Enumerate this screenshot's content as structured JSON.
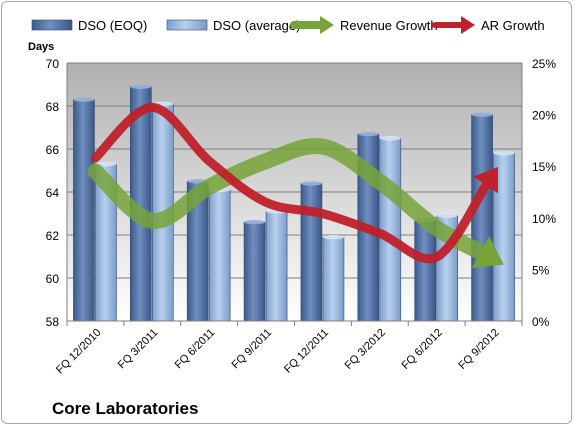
{
  "chart_data": {
    "type": "bar",
    "title": "Core Laboratories",
    "categories": [
      "FQ 12/2010",
      "FQ 3/2011",
      "FQ 6/2011",
      "FQ 9/2011",
      "FQ 12/2011",
      "FQ 3/2012",
      "FQ 6/2012",
      "FQ 9/2012"
    ],
    "series": [
      {
        "name": "DSO (EOQ)",
        "kind": "bar",
        "axis": "left",
        "color": "#4f6fa0",
        "values": [
          68.3,
          68.9,
          64.5,
          62.6,
          64.4,
          66.7,
          62.7,
          67.6
        ]
      },
      {
        "name": "DSO (average)",
        "kind": "bar",
        "axis": "left",
        "color": "#8fb0dc",
        "values": [
          65.3,
          68.1,
          64.1,
          63.1,
          61.9,
          66.5,
          62.9,
          65.8
        ]
      },
      {
        "name": "Revenue Growth",
        "kind": "line-arrow",
        "axis": "right",
        "color": "#77a338",
        "values": [
          0.145,
          0.097,
          0.13,
          0.155,
          0.169,
          0.135,
          0.09,
          0.06
        ]
      },
      {
        "name": "AR Growth",
        "kind": "line-arrow",
        "axis": "right",
        "color": "#c0202a",
        "values": [
          0.158,
          0.207,
          0.155,
          0.115,
          0.104,
          0.085,
          0.062,
          0.143
        ]
      }
    ],
    "ylabel": "Days",
    "ylim": [
      58,
      70
    ],
    "yticks": [
      "58",
      "60",
      "62",
      "64",
      "66",
      "68",
      "70"
    ],
    "y2lim": [
      0,
      0.25
    ],
    "y2ticks": [
      "0%",
      "5%",
      "10%",
      "15%",
      "20%",
      "25%"
    ],
    "grid": true,
    "legend_position": "top"
  }
}
